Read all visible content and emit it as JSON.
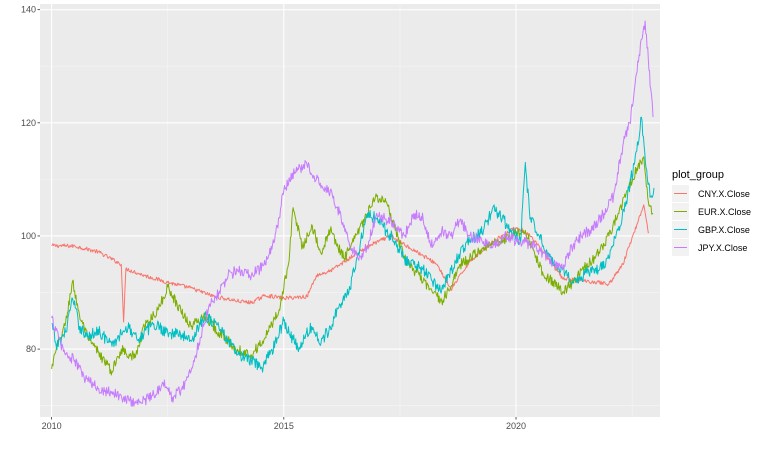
{
  "chart_data": {
    "type": "line",
    "x_ticks": [
      "2010",
      "2015",
      "2020"
    ],
    "y_ticks": [
      "80",
      "100",
      "120",
      "140"
    ],
    "xlim": [
      "2009-10",
      "2023-02"
    ],
    "ylim": [
      68,
      141
    ],
    "grid": true,
    "legend": {
      "title": "plot_group",
      "placement": "right"
    },
    "series": [
      {
        "name": "CNY.X.Close",
        "color": "#F8766D",
        "points": [
          [
            2010.0,
            98.3
          ],
          [
            2010.5,
            98.2
          ],
          [
            2011.0,
            97.2
          ],
          [
            2011.5,
            95.0
          ],
          [
            2011.55,
            84.8
          ],
          [
            2011.6,
            94.2
          ],
          [
            2012.0,
            93.0
          ],
          [
            2012.5,
            91.8
          ],
          [
            2013.0,
            90.8
          ],
          [
            2013.5,
            89.3
          ],
          [
            2014.0,
            88.5
          ],
          [
            2014.3,
            88.2
          ],
          [
            2014.6,
            89.5
          ],
          [
            2015.0,
            89.0
          ],
          [
            2015.5,
            89.3
          ],
          [
            2015.7,
            93.0
          ],
          [
            2016.0,
            93.8
          ],
          [
            2016.5,
            96.5
          ],
          [
            2016.9,
            98.5
          ],
          [
            2017.3,
            100.0
          ],
          [
            2017.7,
            98.0
          ],
          [
            2018.0,
            96.5
          ],
          [
            2018.3,
            95.0
          ],
          [
            2018.6,
            90.5
          ],
          [
            2019.0,
            95.5
          ],
          [
            2019.5,
            99.0
          ],
          [
            2019.8,
            100.5
          ],
          [
            2020.0,
            101.5
          ],
          [
            2020.3,
            100.0
          ],
          [
            2020.6,
            97.0
          ],
          [
            2021.0,
            92.5
          ],
          [
            2021.5,
            92.0
          ],
          [
            2021.8,
            91.8
          ],
          [
            2022.0,
            91.5
          ],
          [
            2022.3,
            95.0
          ],
          [
            2022.6,
            102.0
          ],
          [
            2022.75,
            105.5
          ],
          [
            2022.85,
            100.5
          ]
        ]
      },
      {
        "name": "EUR.X.Close",
        "color": "#7CAE00",
        "points": [
          [
            2010.0,
            76.5
          ],
          [
            2010.1,
            80.0
          ],
          [
            2010.3,
            84.5
          ],
          [
            2010.45,
            92.0
          ],
          [
            2010.6,
            86.0
          ],
          [
            2010.8,
            81.5
          ],
          [
            2011.0,
            79.5
          ],
          [
            2011.3,
            76.0
          ],
          [
            2011.5,
            80.0
          ],
          [
            2011.8,
            78.5
          ],
          [
            2012.0,
            84.0
          ],
          [
            2012.3,
            87.0
          ],
          [
            2012.5,
            91.0
          ],
          [
            2012.7,
            88.0
          ],
          [
            2013.0,
            84.0
          ],
          [
            2013.3,
            86.0
          ],
          [
            2013.6,
            83.0
          ],
          [
            2014.0,
            80.0
          ],
          [
            2014.3,
            79.0
          ],
          [
            2014.6,
            82.0
          ],
          [
            2014.9,
            87.0
          ],
          [
            2015.1,
            95.0
          ],
          [
            2015.2,
            105.0
          ],
          [
            2015.4,
            98.0
          ],
          [
            2015.6,
            102.0
          ],
          [
            2015.8,
            97.0
          ],
          [
            2016.0,
            101.0
          ],
          [
            2016.3,
            96.0
          ],
          [
            2016.5,
            99.0
          ],
          [
            2016.8,
            104.0
          ],
          [
            2017.0,
            107.0
          ],
          [
            2017.2,
            106.0
          ],
          [
            2017.4,
            101.0
          ],
          [
            2017.6,
            96.0
          ],
          [
            2017.8,
            94.0
          ],
          [
            2018.0,
            92.0
          ],
          [
            2018.2,
            90.0
          ],
          [
            2018.4,
            88.5
          ],
          [
            2018.6,
            91.0
          ],
          [
            2018.8,
            95.0
          ],
          [
            2019.0,
            96.0
          ],
          [
            2019.3,
            98.0
          ],
          [
            2019.6,
            99.0
          ],
          [
            2019.9,
            100.0
          ],
          [
            2020.2,
            101.0
          ],
          [
            2020.4,
            97.0
          ],
          [
            2020.6,
            93.0
          ],
          [
            2020.8,
            92.0
          ],
          [
            2021.0,
            90.0
          ],
          [
            2021.2,
            91.5
          ],
          [
            2021.4,
            94.0
          ],
          [
            2021.7,
            96.0
          ],
          [
            2022.0,
            100.0
          ],
          [
            2022.2,
            104.0
          ],
          [
            2022.4,
            108.0
          ],
          [
            2022.6,
            112.0
          ],
          [
            2022.75,
            114.0
          ],
          [
            2022.85,
            106.0
          ],
          [
            2022.95,
            104.0
          ]
        ]
      },
      {
        "name": "GBP.X.Close",
        "color": "#00BFC4",
        "points": [
          [
            2010.0,
            84.5
          ],
          [
            2010.1,
            80.5
          ],
          [
            2010.3,
            83.0
          ],
          [
            2010.45,
            89.0
          ],
          [
            2010.6,
            84.0
          ],
          [
            2010.8,
            82.0
          ],
          [
            2011.0,
            83.5
          ],
          [
            2011.3,
            80.5
          ],
          [
            2011.6,
            84.0
          ],
          [
            2011.9,
            82.0
          ],
          [
            2012.2,
            84.5
          ],
          [
            2012.5,
            83.0
          ],
          [
            2012.8,
            82.5
          ],
          [
            2013.0,
            81.5
          ],
          [
            2013.3,
            86.0
          ],
          [
            2013.6,
            84.0
          ],
          [
            2014.0,
            79.0
          ],
          [
            2014.3,
            78.0
          ],
          [
            2014.5,
            76.5
          ],
          [
            2014.7,
            79.0
          ],
          [
            2015.0,
            85.0
          ],
          [
            2015.3,
            80.0
          ],
          [
            2015.6,
            84.0
          ],
          [
            2015.8,
            81.0
          ],
          [
            2016.0,
            84.0
          ],
          [
            2016.2,
            88.0
          ],
          [
            2016.4,
            90.0
          ],
          [
            2016.6,
            97.0
          ],
          [
            2016.8,
            104.0
          ],
          [
            2017.0,
            103.0
          ],
          [
            2017.2,
            101.0
          ],
          [
            2017.4,
            99.0
          ],
          [
            2017.6,
            96.0
          ],
          [
            2017.8,
            95.0
          ],
          [
            2018.0,
            94.0
          ],
          [
            2018.2,
            92.0
          ],
          [
            2018.4,
            90.5
          ],
          [
            2018.6,
            94.0
          ],
          [
            2018.8,
            97.0
          ],
          [
            2019.0,
            99.0
          ],
          [
            2019.3,
            101.0
          ],
          [
            2019.5,
            105.0
          ],
          [
            2019.7,
            103.0
          ],
          [
            2019.9,
            101.0
          ],
          [
            2020.1,
            99.0
          ],
          [
            2020.2,
            113.0
          ],
          [
            2020.3,
            103.0
          ],
          [
            2020.5,
            100.0
          ],
          [
            2020.7,
            97.0
          ],
          [
            2020.9,
            94.0
          ],
          [
            2021.1,
            93.0
          ],
          [
            2021.3,
            92.0
          ],
          [
            2021.5,
            93.5
          ],
          [
            2021.8,
            94.0
          ],
          [
            2022.0,
            96.0
          ],
          [
            2022.2,
            101.0
          ],
          [
            2022.4,
            107.0
          ],
          [
            2022.6,
            115.0
          ],
          [
            2022.7,
            121.0
          ],
          [
            2022.8,
            112.0
          ],
          [
            2022.9,
            107.0
          ],
          [
            2022.97,
            108.5
          ]
        ]
      },
      {
        "name": "JPY.X.Close",
        "color": "#C77CFF",
        "points": [
          [
            2010.0,
            85.5
          ],
          [
            2010.15,
            82.0
          ],
          [
            2010.3,
            79.0
          ],
          [
            2010.5,
            78.0
          ],
          [
            2010.7,
            75.0
          ],
          [
            2011.0,
            73.0
          ],
          [
            2011.3,
            72.5
          ],
          [
            2011.6,
            71.0
          ],
          [
            2011.9,
            70.5
          ],
          [
            2012.2,
            72.0
          ],
          [
            2012.4,
            74.0
          ],
          [
            2012.6,
            71.5
          ],
          [
            2012.8,
            73.0
          ],
          [
            2013.0,
            76.0
          ],
          [
            2013.2,
            82.0
          ],
          [
            2013.4,
            88.0
          ],
          [
            2013.6,
            90.0
          ],
          [
            2013.8,
            93.0
          ],
          [
            2014.0,
            94.0
          ],
          [
            2014.3,
            93.0
          ],
          [
            2014.6,
            95.0
          ],
          [
            2014.8,
            99.0
          ],
          [
            2015.0,
            108.0
          ],
          [
            2015.3,
            112.0
          ],
          [
            2015.5,
            112.5
          ],
          [
            2015.7,
            110.0
          ],
          [
            2016.0,
            108.0
          ],
          [
            2016.2,
            104.0
          ],
          [
            2016.4,
            99.0
          ],
          [
            2016.6,
            96.0
          ],
          [
            2016.8,
            98.0
          ],
          [
            2017.0,
            104.0
          ],
          [
            2017.2,
            103.0
          ],
          [
            2017.4,
            102.0
          ],
          [
            2017.6,
            100.0
          ],
          [
            2017.8,
            104.0
          ],
          [
            2018.0,
            103.0
          ],
          [
            2018.2,
            98.0
          ],
          [
            2018.4,
            101.0
          ],
          [
            2018.6,
            100.0
          ],
          [
            2018.8,
            103.0
          ],
          [
            2019.0,
            100.0
          ],
          [
            2019.3,
            99.0
          ],
          [
            2019.5,
            98.0
          ],
          [
            2019.8,
            100.0
          ],
          [
            2020.0,
            99.0
          ],
          [
            2020.2,
            99.0
          ],
          [
            2020.4,
            98.0
          ],
          [
            2020.6,
            97.0
          ],
          [
            2020.8,
            95.0
          ],
          [
            2021.0,
            94.0
          ],
          [
            2021.2,
            98.0
          ],
          [
            2021.4,
            100.0
          ],
          [
            2021.6,
            101.0
          ],
          [
            2021.9,
            104.0
          ],
          [
            2022.1,
            107.0
          ],
          [
            2022.3,
            116.0
          ],
          [
            2022.45,
            120.0
          ],
          [
            2022.55,
            126.0
          ],
          [
            2022.65,
            132.0
          ],
          [
            2022.72,
            135.0
          ],
          [
            2022.78,
            138.0
          ],
          [
            2022.85,
            131.0
          ],
          [
            2022.9,
            126.0
          ],
          [
            2022.95,
            121.0
          ]
        ]
      }
    ]
  }
}
